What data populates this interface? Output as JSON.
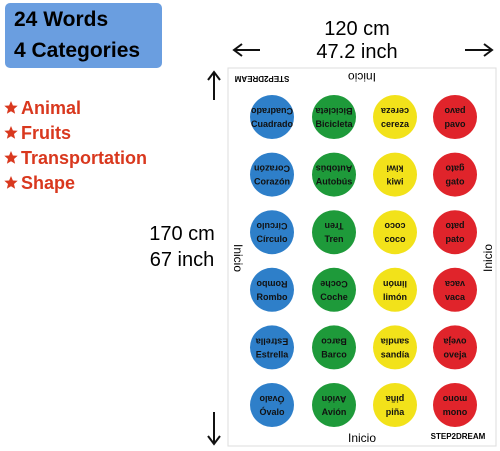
{
  "header": {
    "lines": [
      "24 Words",
      "4 Categories"
    ]
  },
  "categories": [
    "Animal",
    "Fruits",
    "Transportation",
    "Shape"
  ],
  "dimensions": {
    "width_cm": "120 cm",
    "width_inch": "47.2 inch",
    "height_cm": "170 cm",
    "height_inch": "67 inch"
  },
  "mat": {
    "start_label": "Inicio",
    "brand": "STEP2DREAM",
    "column_colors": [
      "#2e7fc9",
      "#1e9a3a",
      "#f2e21a",
      "#e0242b"
    ],
    "rows": [
      [
        "Cuadrado",
        "Bicicleta",
        "cereza",
        "pavo"
      ],
      [
        "Corazón",
        "Autobús",
        "kiwi",
        "gato"
      ],
      [
        "Círculo",
        "Tren",
        "coco",
        "pato"
      ],
      [
        "Rombo",
        "Coche",
        "limón",
        "vaca"
      ],
      [
        "Estrella",
        "Barco",
        "sandía",
        "oveja"
      ],
      [
        "Óvalo",
        "Avión",
        "piña",
        "mono"
      ]
    ]
  }
}
